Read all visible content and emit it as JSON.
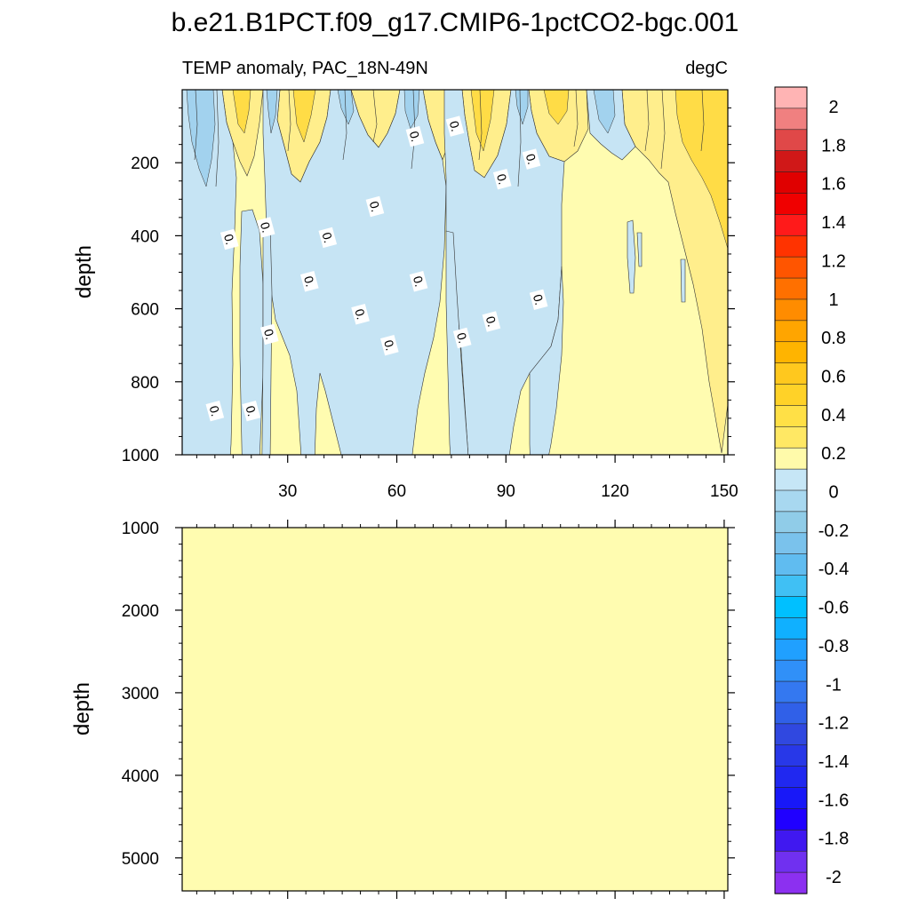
{
  "chart_data": [
    {
      "type": "heatmap",
      "title": "b.e21.B1PCT.f09_g17.CMIP6-1pctCO2-bgc.001",
      "subtitle_left": "TEMP anomaly, PAC_18N-49N",
      "subtitle_right": "degC",
      "ylabel": "depth",
      "xlabel": "",
      "xlim": [
        1,
        151
      ],
      "ylim": [
        1000,
        0
      ],
      "xticks": [
        30,
        60,
        90,
        120,
        150
      ],
      "xtick_labels": [
        "30",
        "60",
        "90",
        "120",
        "150"
      ],
      "yticks": [
        200,
        400,
        600,
        800,
        1000
      ],
      "ytick_labels": [
        "200",
        "400",
        "600",
        "800",
        "1000"
      ],
      "contour_labels": [
        {
          "text": "0.",
          "x": 10,
          "y": 880
        },
        {
          "text": "0.",
          "x": 14,
          "y": 410
        },
        {
          "text": "0.",
          "x": 20,
          "y": 880
        },
        {
          "text": "0.",
          "x": 24,
          "y": 377
        },
        {
          "text": "0.",
          "x": 25,
          "y": 670
        },
        {
          "text": "0.",
          "x": 36,
          "y": 525
        },
        {
          "text": "0.",
          "x": 41,
          "y": 405
        },
        {
          "text": "0.",
          "x": 50,
          "y": 615
        },
        {
          "text": "0.",
          "x": 54,
          "y": 320
        },
        {
          "text": "0.",
          "x": 58,
          "y": 700
        },
        {
          "text": "0.",
          "x": 65,
          "y": 128
        },
        {
          "text": "0.",
          "x": 66,
          "y": 525
        },
        {
          "text": "0.",
          "x": 76,
          "y": 100
        },
        {
          "text": "0.",
          "x": 78,
          "y": 680
        },
        {
          "text": "0.",
          "x": 86,
          "y": 635
        },
        {
          "text": "0.",
          "x": 89,
          "y": 245
        },
        {
          "text": "0.",
          "x": 97,
          "y": 190
        },
        {
          "text": "0.",
          "x": 99,
          "y": 575
        }
      ],
      "region_summary": {
        "background_level": "0 to 0.2",
        "negative_level": "-0.2 to 0",
        "positive_near_surface": "0.2 to 0.4"
      }
    },
    {
      "type": "heatmap",
      "ylabel": "depth",
      "xlabel": "",
      "xlim": [
        1,
        151
      ],
      "ylim": [
        5400,
        1000
      ],
      "yticks": [
        1000,
        2000,
        3000,
        4000,
        5000
      ],
      "ytick_labels": [
        "1000",
        "2000",
        "3000",
        "4000",
        "5000"
      ],
      "xticks": [
        30,
        60,
        90,
        120,
        150
      ],
      "xtick_labels": [],
      "region_summary": {
        "background_level": "0 to 0.2"
      }
    }
  ],
  "colorbar": {
    "labels": [
      "2",
      "1.8",
      "1.6",
      "1.4",
      "1.2",
      "1",
      "0.8",
      "0.6",
      "0.4",
      "0.2",
      "0",
      "-0.2",
      "-0.4",
      "-0.6",
      "-0.8",
      "-1",
      "-1.2",
      "-1.4",
      "-1.6",
      "-1.8",
      "-2"
    ],
    "colors": [
      "#ffb4b4",
      "#f08080",
      "#e04848",
      "#d01818",
      "#e00000",
      "#f00000",
      "#ff1a1a",
      "#ff3300",
      "#ff5500",
      "#ff7000",
      "#ff8c00",
      "#ffa500",
      "#ffb400",
      "#ffc81e",
      "#ffd228",
      "#ffe046",
      "#ffe864",
      "#fffaaa",
      "#c6e6f6",
      "#a8d8f0",
      "#90cce8",
      "#7ac2ec",
      "#60bcf0",
      "#40c0f4",
      "#00c0ff",
      "#10b0ff",
      "#20a0ff",
      "#3090f8",
      "#3478f0",
      "#3060e8",
      "#3048e0",
      "#2838e8",
      "#2028f0",
      "#1818f8",
      "#2000ff",
      "#4018f0",
      "#7030f0",
      "#8c30f0"
    ]
  },
  "colors": {
    "zero_band": "#fffcb0",
    "neg_band": "#c6e4f4",
    "neg_band2": "#a2d2ee",
    "pos_band": "#ffee8c",
    "pos_band2": "#ffdc46",
    "contour": "#333333"
  }
}
